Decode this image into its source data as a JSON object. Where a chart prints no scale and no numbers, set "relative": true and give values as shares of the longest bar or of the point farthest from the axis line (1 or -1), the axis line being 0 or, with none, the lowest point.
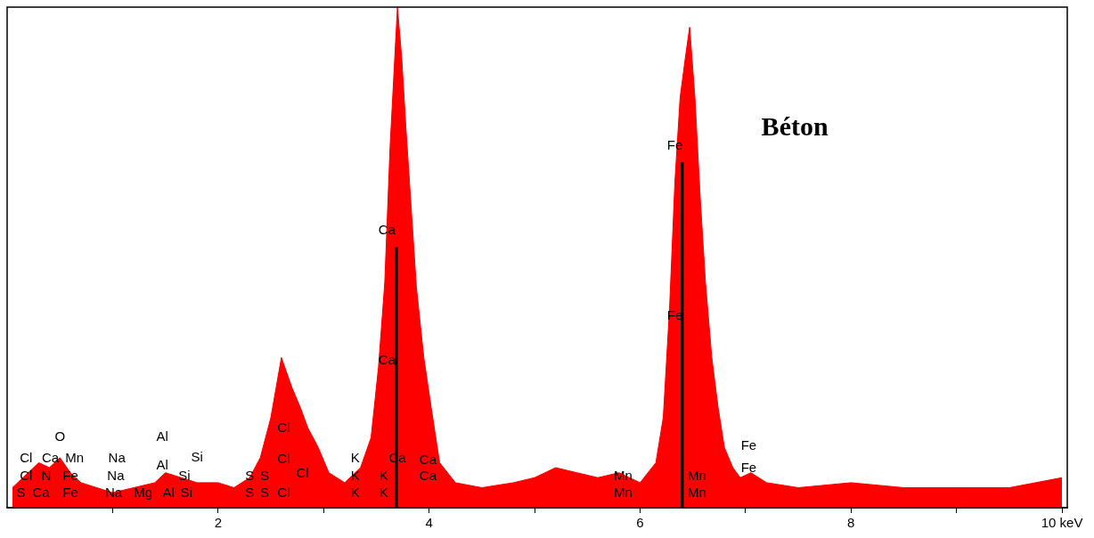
{
  "chart_data": {
    "type": "area",
    "title": "Béton",
    "relative": true,
    "color": "#ff0000",
    "x": [
      0.05,
      0.15,
      0.3,
      0.4,
      0.5,
      0.6,
      0.7,
      0.85,
      1.0,
      1.2,
      1.4,
      1.5,
      1.65,
      1.8,
      2.0,
      2.15,
      2.3,
      2.4,
      2.5,
      2.55,
      2.6,
      2.65,
      2.7,
      2.78,
      2.85,
      2.95,
      3.05,
      3.2,
      3.35,
      3.45,
      3.52,
      3.58,
      3.63,
      3.67,
      3.7,
      3.74,
      3.78,
      3.83,
      3.88,
      3.95,
      4.02,
      4.1,
      4.25,
      4.5,
      4.8,
      5.0,
      5.2,
      5.4,
      5.6,
      5.8,
      6.0,
      6.15,
      6.22,
      6.28,
      6.33,
      6.38,
      6.43,
      6.47,
      6.52,
      6.57,
      6.62,
      6.68,
      6.74,
      6.8,
      6.88,
      6.95,
      7.05,
      7.2,
      7.5,
      8.0,
      8.5,
      9.0,
      9.5,
      10.0
    ],
    "values": [
      0.04,
      0.06,
      0.09,
      0.08,
      0.1,
      0.07,
      0.05,
      0.04,
      0.03,
      0.04,
      0.05,
      0.07,
      0.06,
      0.05,
      0.05,
      0.04,
      0.06,
      0.1,
      0.18,
      0.24,
      0.3,
      0.27,
      0.24,
      0.2,
      0.16,
      0.12,
      0.07,
      0.05,
      0.08,
      0.14,
      0.28,
      0.45,
      0.72,
      0.88,
      1.0,
      0.9,
      0.76,
      0.6,
      0.44,
      0.3,
      0.2,
      0.09,
      0.05,
      0.04,
      0.05,
      0.06,
      0.08,
      0.07,
      0.06,
      0.07,
      0.05,
      0.09,
      0.18,
      0.4,
      0.65,
      0.82,
      0.9,
      0.96,
      0.82,
      0.62,
      0.45,
      0.3,
      0.2,
      0.12,
      0.08,
      0.06,
      0.07,
      0.05,
      0.04,
      0.05,
      0.04,
      0.04,
      0.04,
      0.06
    ],
    "series": [
      {
        "type": "bar",
        "color": "#000000",
        "x": [
          3.69
        ],
        "values": [
          0.52
        ]
      },
      {
        "type": "bar",
        "color": "#000000",
        "x": [
          6.4
        ],
        "values": [
          0.69
        ]
      }
    ],
    "xlim": [
      0,
      10.05
    ],
    "xticks": [
      {
        "value": 1,
        "label": null
      },
      2,
      {
        "value": 3,
        "label": null
      },
      4,
      {
        "value": 5,
        "label": null
      },
      6,
      {
        "value": 7,
        "label": null
      },
      8,
      {
        "value": 9,
        "label": null
      },
      {
        "value": 10,
        "label": "10 keV"
      }
    ],
    "grid": false,
    "annotations": [
      "S",
      "Ca",
      "Fe",
      "Na",
      "Mg",
      "Al",
      "Si",
      "S",
      "S",
      "Cl",
      "K",
      "K",
      "Mn",
      "Mn",
      "Cl",
      "N",
      "Fe",
      "Na",
      "Si",
      "S",
      "S",
      "Cl",
      "K",
      "K",
      "Ca",
      "Mn",
      "Mn",
      "Fe",
      "Cl",
      "Ca",
      "Mn",
      "Na",
      "Al",
      "Si",
      "Cl",
      "K",
      "Ca",
      "Ca",
      "Fe",
      "O",
      "Al",
      "Cl",
      "Ca",
      "Ca",
      "Fe",
      "Fe"
    ]
  }
}
